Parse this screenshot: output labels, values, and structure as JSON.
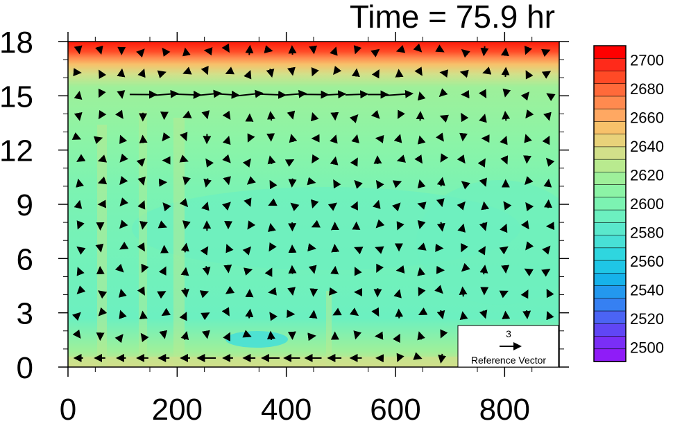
{
  "title": "Time = 75.9 hr",
  "chart_data": {
    "type": "heatmap",
    "title": "Time = 75.9 hr",
    "xlabel": "",
    "ylabel": "",
    "x_ticks": [
      0,
      200,
      400,
      600,
      800
    ],
    "y_ticks": [
      0,
      3,
      6,
      9,
      12,
      15,
      18
    ],
    "xlim": [
      0,
      900
    ],
    "ylim": [
      0,
      18
    ],
    "colorbar": {
      "labels": [
        2700,
        2680,
        2660,
        2640,
        2620,
        2600,
        2580,
        2560,
        2540,
        2520,
        2500
      ],
      "range": [
        2490,
        2710
      ],
      "colors": [
        "#ff0000",
        "#ff2a1a",
        "#ff4a26",
        "#ff6a3a",
        "#ff8a4f",
        "#ffa862",
        "#f7c16a",
        "#e8d27a",
        "#d2e08a",
        "#b9ea8f",
        "#9ef09a",
        "#8cf4a6",
        "#7cf3b2",
        "#6cf0c0",
        "#5ae8cc",
        "#48e0d6",
        "#2fd6df",
        "#1fc6e6",
        "#16b2ea",
        "#2398ee",
        "#3680f2",
        "#4b64f4",
        "#6046f5",
        "#7a2ef6",
        "#8f1cf7"
      ]
    },
    "reference_vector": {
      "magnitude": "3",
      "label": "Reference Vector"
    },
    "field_description_values": {
      "top_layer_value": 2700,
      "upper_transition_value": 2640,
      "mid_domain_value": 2595,
      "low_domain_value": 2580,
      "surface_value": 2620,
      "min_patch_value": 2570
    }
  }
}
